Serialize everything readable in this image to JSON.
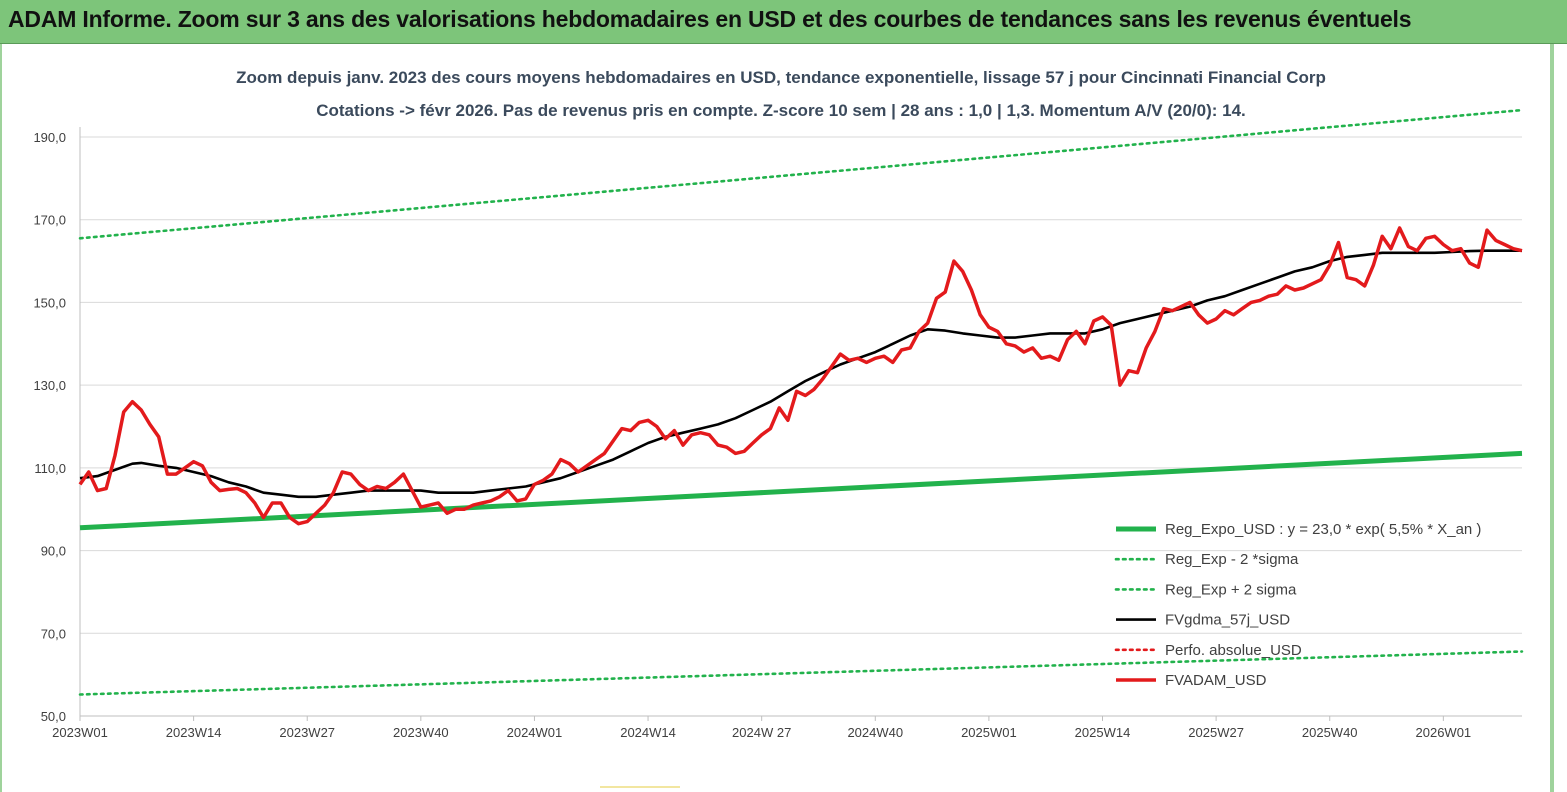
{
  "header": {
    "title": "ADAM Informe. Zoom sur 3 ans des valorisations hebdomadaires en USD et des courbes de tendances sans les revenus éventuels"
  },
  "chart_data": {
    "type": "line",
    "title_line1": "Zoom depuis janv. 2023 des cours moyens hebdomadaires en USD, tendance exponentielle, lissage 57 j pour Cincinnati Financial Corp",
    "title_line2": "Cotations -> févr 2026. Pas de revenus pris en compte. Z-score 10 sem | 28 ans : 1,0 | 1,3. Momentum A/V (20/0): 14.",
    "ylim": [
      50,
      190
    ],
    "y_ticks": [
      "50,0",
      "70,0",
      "90,0",
      "110,0",
      "130,0",
      "150,0",
      "170,0",
      "190,0"
    ],
    "x_ticks": [
      "2023W01",
      "2023W14",
      "2023W27",
      "2023W40",
      "2024W01",
      "2024W14",
      "2024W 27",
      "2024W40",
      "2025W01",
      "2025W14",
      "2025W27",
      "2025W40",
      "2026W01"
    ],
    "grid": "horizontal",
    "legend_position": "bottom-right",
    "series": [
      {
        "name": "Reg_Expo_USD : y = 23,0 * exp( 5,5% *  X_an )",
        "color": "#22b24c",
        "style": "solid-thick",
        "points": [
          [
            0,
            95.5
          ],
          [
            165,
            113.5
          ]
        ]
      },
      {
        "name": "Reg_Exp - 2 *sigma",
        "color": "#22b24c",
        "style": "dotted",
        "points": [
          [
            0,
            55.2
          ],
          [
            165,
            65.6
          ]
        ]
      },
      {
        "name": "Reg_Exp + 2 sigma",
        "color": "#22b24c",
        "style": "dotted",
        "points": [
          [
            0,
            165.5
          ],
          [
            165,
            196.5
          ]
        ]
      },
      {
        "name": "FVgdma_57j_USD",
        "color": "#000000",
        "style": "solid",
        "points": [
          [
            0,
            107.5
          ],
          [
            2,
            108
          ],
          [
            4,
            109.5
          ],
          [
            6,
            111
          ],
          [
            7,
            111.2
          ],
          [
            9,
            110.5
          ],
          [
            11,
            110
          ],
          [
            13,
            109
          ],
          [
            15,
            108
          ],
          [
            17,
            106.5
          ],
          [
            19,
            105.5
          ],
          [
            21,
            104
          ],
          [
            23,
            103.5
          ],
          [
            25,
            103
          ],
          [
            27,
            103
          ],
          [
            29,
            103.5
          ],
          [
            31,
            104
          ],
          [
            33,
            104.5
          ],
          [
            35,
            104.5
          ],
          [
            37,
            104.5
          ],
          [
            39,
            104.5
          ],
          [
            41,
            104
          ],
          [
            43,
            104
          ],
          [
            45,
            104
          ],
          [
            47,
            104.5
          ],
          [
            49,
            105
          ],
          [
            51,
            105.5
          ],
          [
            53,
            106.5
          ],
          [
            55,
            107.5
          ],
          [
            57,
            109
          ],
          [
            59,
            110.5
          ],
          [
            61,
            112
          ],
          [
            63,
            114
          ],
          [
            65,
            116
          ],
          [
            67,
            117.5
          ],
          [
            69,
            118.5
          ],
          [
            71,
            119.5
          ],
          [
            73,
            120.5
          ],
          [
            75,
            122
          ],
          [
            77,
            124
          ],
          [
            79,
            126
          ],
          [
            81,
            128.5
          ],
          [
            83,
            131
          ],
          [
            85,
            133
          ],
          [
            87,
            135
          ],
          [
            89,
            136.5
          ],
          [
            91,
            138
          ],
          [
            93,
            140
          ],
          [
            95,
            142
          ],
          [
            97,
            143.5
          ],
          [
            99,
            143.2
          ],
          [
            101,
            142.5
          ],
          [
            103,
            142
          ],
          [
            105,
            141.5
          ],
          [
            107,
            141.5
          ],
          [
            109,
            142
          ],
          [
            111,
            142.5
          ],
          [
            113,
            142.5
          ],
          [
            115,
            142.5
          ],
          [
            117,
            143.5
          ],
          [
            119,
            145
          ],
          [
            121,
            146
          ],
          [
            123,
            147
          ],
          [
            125,
            148
          ],
          [
            127,
            149
          ],
          [
            129,
            150.5
          ],
          [
            131,
            151.5
          ],
          [
            133,
            153
          ],
          [
            135,
            154.5
          ],
          [
            137,
            156
          ],
          [
            139,
            157.5
          ],
          [
            141,
            158.5
          ],
          [
            143,
            160
          ],
          [
            145,
            161
          ],
          [
            147,
            161.5
          ],
          [
            149,
            162
          ],
          [
            151,
            162
          ],
          [
            153,
            162
          ],
          [
            155,
            162
          ],
          [
            157,
            162.2
          ],
          [
            159,
            162.4
          ],
          [
            161,
            162.5
          ],
          [
            163,
            162.5
          ],
          [
            165,
            162.5
          ]
        ]
      },
      {
        "name": "Perfo. absolue_USD",
        "color": "#e31a1c",
        "style": "dotted",
        "points": []
      },
      {
        "name": "FVADAM_USD",
        "color": "#e31a1c",
        "style": "solid-thick",
        "points": [
          [
            0,
            106
          ],
          [
            1,
            109
          ],
          [
            2,
            104.5
          ],
          [
            3,
            105
          ],
          [
            4,
            113
          ],
          [
            5,
            123.5
          ],
          [
            6,
            126
          ],
          [
            7,
            124
          ],
          [
            8,
            120.5
          ],
          [
            9,
            117.5
          ],
          [
            10,
            108.5
          ],
          [
            11,
            108.5
          ],
          [
            12,
            110
          ],
          [
            13,
            111.5
          ],
          [
            14,
            110.5
          ],
          [
            15,
            106.5
          ],
          [
            16,
            104.5
          ],
          [
            17,
            104.8
          ],
          [
            18,
            105
          ],
          [
            19,
            104
          ],
          [
            20,
            101.5
          ],
          [
            21,
            98
          ],
          [
            22,
            101.5
          ],
          [
            23,
            101.5
          ],
          [
            24,
            98
          ],
          [
            25,
            96.5
          ],
          [
            26,
            97
          ],
          [
            27,
            99
          ],
          [
            28,
            101
          ],
          [
            29,
            104
          ],
          [
            30,
            109
          ],
          [
            31,
            108.5
          ],
          [
            32,
            106
          ],
          [
            33,
            104.5
          ],
          [
            34,
            105.5
          ],
          [
            35,
            105
          ],
          [
            36,
            106.5
          ],
          [
            37,
            108.5
          ],
          [
            38,
            104.5
          ],
          [
            39,
            100.5
          ],
          [
            40,
            101
          ],
          [
            41,
            101.5
          ],
          [
            42,
            99
          ],
          [
            43,
            100
          ],
          [
            44,
            100
          ],
          [
            45,
            101
          ],
          [
            46,
            101.5
          ],
          [
            47,
            102
          ],
          [
            48,
            103
          ],
          [
            49,
            104.5
          ],
          [
            50,
            102
          ],
          [
            51,
            102.5
          ],
          [
            52,
            106
          ],
          [
            53,
            107
          ],
          [
            54,
            108.5
          ],
          [
            55,
            112
          ],
          [
            56,
            111
          ],
          [
            57,
            109
          ],
          [
            58,
            110.5
          ],
          [
            59,
            112
          ],
          [
            60,
            113.5
          ],
          [
            61,
            116.5
          ],
          [
            62,
            119.5
          ],
          [
            63,
            119
          ],
          [
            64,
            121
          ],
          [
            65,
            121.5
          ],
          [
            66,
            120
          ],
          [
            67,
            117
          ],
          [
            68,
            119
          ],
          [
            69,
            115.5
          ],
          [
            70,
            118
          ],
          [
            71,
            118.5
          ],
          [
            72,
            118
          ],
          [
            73,
            115.5
          ],
          [
            74,
            115
          ],
          [
            75,
            113.5
          ],
          [
            76,
            114
          ],
          [
            77,
            116
          ],
          [
            78,
            118
          ],
          [
            79,
            119.5
          ],
          [
            80,
            124.5
          ],
          [
            81,
            121.5
          ],
          [
            82,
            128.5
          ],
          [
            83,
            127.5
          ],
          [
            84,
            129
          ],
          [
            85,
            131.5
          ],
          [
            86,
            134.5
          ],
          [
            87,
            137.5
          ],
          [
            88,
            136
          ],
          [
            89,
            136.5
          ],
          [
            90,
            135.5
          ],
          [
            91,
            136.5
          ],
          [
            92,
            137
          ],
          [
            93,
            135.5
          ],
          [
            94,
            138.5
          ],
          [
            95,
            139
          ],
          [
            96,
            143
          ],
          [
            97,
            145
          ],
          [
            98,
            151
          ],
          [
            99,
            152.5
          ],
          [
            100,
            160
          ],
          [
            101,
            157.5
          ],
          [
            102,
            153
          ],
          [
            103,
            147
          ],
          [
            104,
            144
          ],
          [
            105,
            143
          ],
          [
            106,
            140
          ],
          [
            107,
            139.5
          ],
          [
            108,
            138
          ],
          [
            109,
            139
          ],
          [
            110,
            136.5
          ],
          [
            111,
            137
          ],
          [
            112,
            136
          ],
          [
            113,
            141
          ],
          [
            114,
            143
          ],
          [
            115,
            140
          ],
          [
            116,
            145.5
          ],
          [
            117,
            146.5
          ],
          [
            118,
            144.5
          ],
          [
            119,
            130
          ],
          [
            120,
            133.5
          ],
          [
            121,
            133
          ],
          [
            122,
            139
          ],
          [
            123,
            143
          ],
          [
            124,
            148.5
          ],
          [
            125,
            148
          ],
          [
            126,
            149
          ],
          [
            127,
            150
          ],
          [
            128,
            147
          ],
          [
            129,
            145
          ],
          [
            130,
            146
          ],
          [
            131,
            148
          ],
          [
            132,
            147
          ],
          [
            133,
            148.5
          ],
          [
            134,
            150
          ],
          [
            135,
            150.5
          ],
          [
            136,
            151.5
          ],
          [
            137,
            152
          ],
          [
            138,
            154
          ],
          [
            139,
            153
          ],
          [
            140,
            153.5
          ],
          [
            141,
            154.5
          ],
          [
            142,
            155.5
          ],
          [
            143,
            159
          ],
          [
            144,
            164.5
          ],
          [
            145,
            156
          ],
          [
            146,
            155.5
          ],
          [
            147,
            154
          ],
          [
            148,
            159
          ],
          [
            149,
            166
          ],
          [
            150,
            163
          ],
          [
            151,
            168
          ],
          [
            152,
            163.5
          ],
          [
            153,
            162.5
          ],
          [
            154,
            165.5
          ],
          [
            155,
            166
          ],
          [
            156,
            164
          ],
          [
            157,
            162.5
          ],
          [
            158,
            163
          ],
          [
            159,
            159.5
          ],
          [
            160,
            158.5
          ],
          [
            161,
            167.5
          ],
          [
            162,
            165
          ],
          [
            163,
            164
          ],
          [
            164,
            163
          ],
          [
            165,
            162.5
          ]
        ]
      }
    ]
  }
}
